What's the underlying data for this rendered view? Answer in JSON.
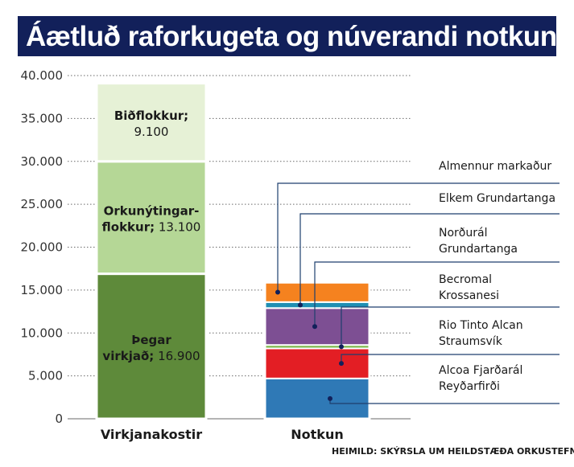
{
  "title": "Áætluð raforkugeta og núverandi notkun",
  "source": "HEIMILD:  SKÝRSLA UM HEILDSTÆÐA ORKUSTEFNU",
  "chart_data": {
    "type": "bar",
    "stacked": true,
    "categories": [
      "Virkjanakostir",
      "Notkun"
    ],
    "ylim": [
      0,
      40000
    ],
    "yticks": [
      0,
      5000,
      10000,
      15000,
      20000,
      25000,
      30000,
      35000,
      40000
    ],
    "ytick_labels": [
      "0",
      "5.000",
      "10.000",
      "15.000",
      "20.000",
      "25.000",
      "30.000",
      "35.000",
      "40.000"
    ],
    "grid": true,
    "capacity": [
      {
        "title": "Þegar virkjað;",
        "value": 16900,
        "value_label": "16.900",
        "color": "#5e8a3a"
      },
      {
        "title": "Orkunýtingar- flokkur;",
        "value": 13100,
        "value_label": "13.100",
        "color": "#b5d796"
      },
      {
        "title": "Biðflokkur;",
        "value": 9100,
        "value_label": "9.100",
        "color": "#e6f1d6"
      }
    ],
    "usage": [
      {
        "name": "Alcoa Fjarðarál Reyðarfirði",
        "lines": [
          "Alcoa Fjarðarál",
          "Reyðarfirði"
        ],
        "value": 4700,
        "color": "#2f79b6"
      },
      {
        "name": "Rio Tinto Alcan Straumsvík",
        "lines": [
          "Rio Tinto Alcan",
          "Straumsvík"
        ],
        "value": 3500,
        "color": "#e31e24"
      },
      {
        "name": "Becromal Krossanesi",
        "lines": [
          "Becromal",
          "Krossanesi"
        ],
        "value": 400,
        "color": "#7ab648"
      },
      {
        "name": "Norðurál Grundartanga",
        "lines": [
          "Norðurál",
          "Grundartanga"
        ],
        "value": 4300,
        "color": "#7d4f93"
      },
      {
        "name": "Elkem Grundartanga",
        "lines": [
          "Elkem Grundartanga"
        ],
        "value": 700,
        "color": "#1f8fb3"
      },
      {
        "name": "Almennur markaður",
        "lines": [
          "Almennur markaður"
        ],
        "value": 2300,
        "color": "#f5821f"
      }
    ]
  }
}
